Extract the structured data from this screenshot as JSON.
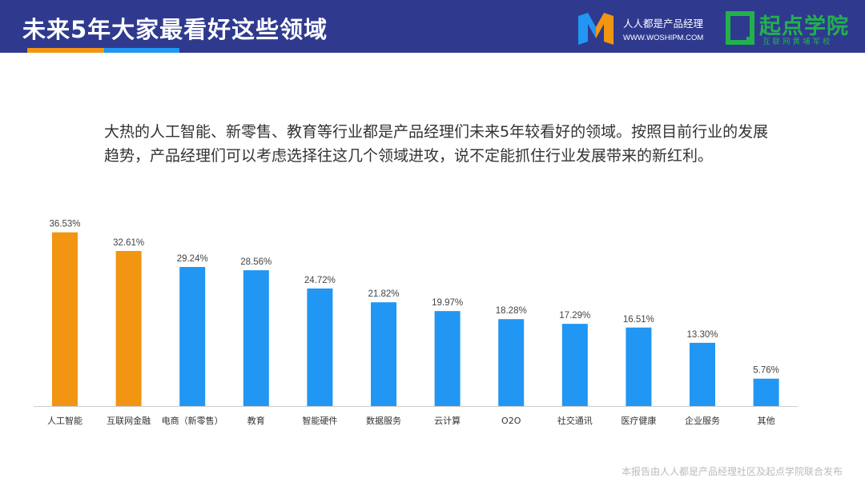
{
  "header": {
    "title": "未来5年大家最看好这些领域",
    "logo1": {
      "name": "人人都是产品经理",
      "url": "WWW.WOSHIPM.COM"
    },
    "logo2": {
      "name": "起点学院",
      "sub": "互联网黄埔军校"
    }
  },
  "description": "大热的人工智能、新零售、教育等行业都是产品经理们未来5年较看好的领域。按照目前行业的发展趋势，产品经理们可以考虑选择往这几个领域进攻，说不定能抓住行业发展带来的新红利。",
  "footer": "本报告由人人都是产品经理社区及起点学院联合发布",
  "colors": {
    "header": "#2f3a8f",
    "highlight": "#f29512",
    "bar": "#2196f3"
  },
  "chart_data": {
    "type": "bar",
    "categories": [
      "人工智能",
      "互联网金融",
      "电商（新零售）",
      "教育",
      "智能硬件",
      "数据服务",
      "云计算",
      "O2O",
      "社交通讯",
      "医疗健康",
      "企业服务",
      "其他"
    ],
    "values": [
      36.53,
      32.61,
      29.24,
      28.56,
      24.72,
      21.82,
      19.97,
      18.28,
      17.29,
      16.51,
      13.3,
      5.76
    ],
    "value_labels": [
      "36.53%",
      "32.61%",
      "29.24%",
      "28.56%",
      "24.72%",
      "21.82%",
      "19.97%",
      "18.28%",
      "17.29%",
      "16.51%",
      "13.30%",
      "5.76%"
    ],
    "highlight_indices": [
      0,
      1
    ],
    "ylim": [
      0,
      40
    ],
    "grid": false,
    "legend": "none"
  }
}
